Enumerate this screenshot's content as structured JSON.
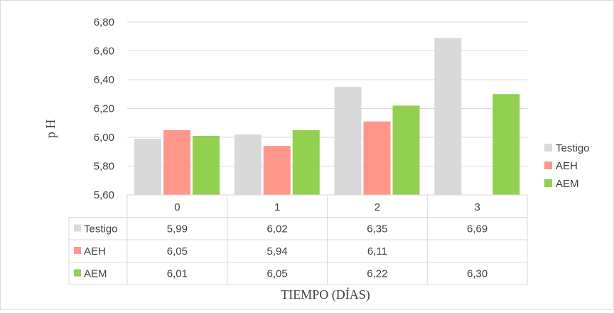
{
  "chart_data": {
    "type": "bar",
    "categories": [
      "0",
      "1",
      "2",
      "3"
    ],
    "series": [
      {
        "name": "Testigo",
        "color": "#d9d9d9",
        "values": [
          5.99,
          6.02,
          6.35,
          6.69
        ],
        "labels": [
          "5,99",
          "6,02",
          "6,35",
          "6,69"
        ]
      },
      {
        "name": "AEH",
        "color": "#ff968a",
        "values": [
          6.05,
          5.94,
          6.11,
          null
        ],
        "labels": [
          "6,05",
          "5,94",
          "6,11",
          ""
        ]
      },
      {
        "name": "AEM",
        "color": "#92d050",
        "values": [
          6.01,
          6.05,
          6.22,
          6.3
        ],
        "labels": [
          "6,01",
          "6,05",
          "6,22",
          "6,30"
        ]
      }
    ],
    "ylim": [
      5.6,
      6.8
    ],
    "yticks": [
      5.6,
      5.8,
      6.0,
      6.2,
      6.4,
      6.6,
      6.8
    ],
    "ytick_labels": [
      "5,60",
      "5,80",
      "6,00",
      "6,20",
      "6,40",
      "6,60",
      "6,80"
    ],
    "ylabel": "p H",
    "xlabel": "TIEMPO (DÍAS)",
    "grid": true,
    "legend": "right",
    "data_table": true
  }
}
